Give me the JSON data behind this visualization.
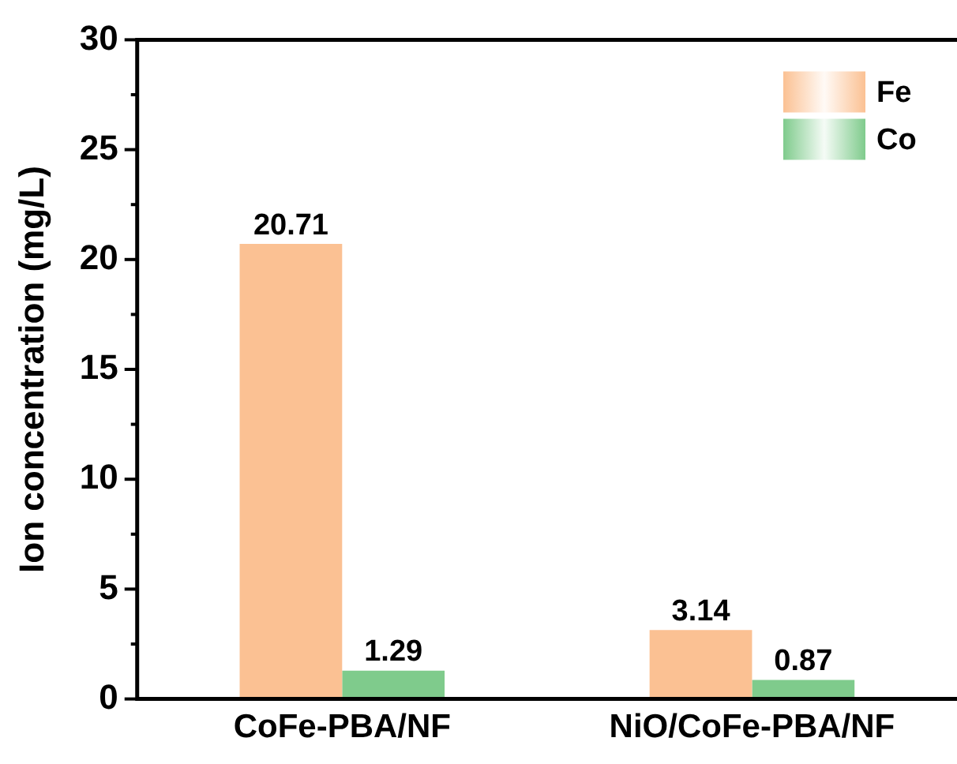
{
  "chart_data": {
    "type": "bar",
    "ylabel": "Ion concentration (mg/L)",
    "categories": [
      "CoFe-PBA/NF",
      "NiO/CoFe-PBA/NF"
    ],
    "series": [
      {
        "name": "Fe",
        "color": "#fbc193",
        "values": [
          20.71,
          3.14
        ]
      },
      {
        "name": "Co",
        "color": "#7fcb8c",
        "values": [
          1.29,
          0.87
        ]
      }
    ],
    "ylim": [
      0,
      30
    ],
    "yticks": [
      0,
      {
        "value": 2.5,
        "label": null
      },
      5,
      {
        "value": 7.5,
        "label": null
      },
      10,
      {
        "value": 12.5,
        "label": null
      },
      15,
      {
        "value": 17.5,
        "label": null
      },
      20,
      {
        "value": 22.5,
        "label": null
      },
      25,
      {
        "value": 27.5,
        "label": null
      },
      30
    ],
    "data_labels": true,
    "grid": false,
    "legend": "top right"
  }
}
